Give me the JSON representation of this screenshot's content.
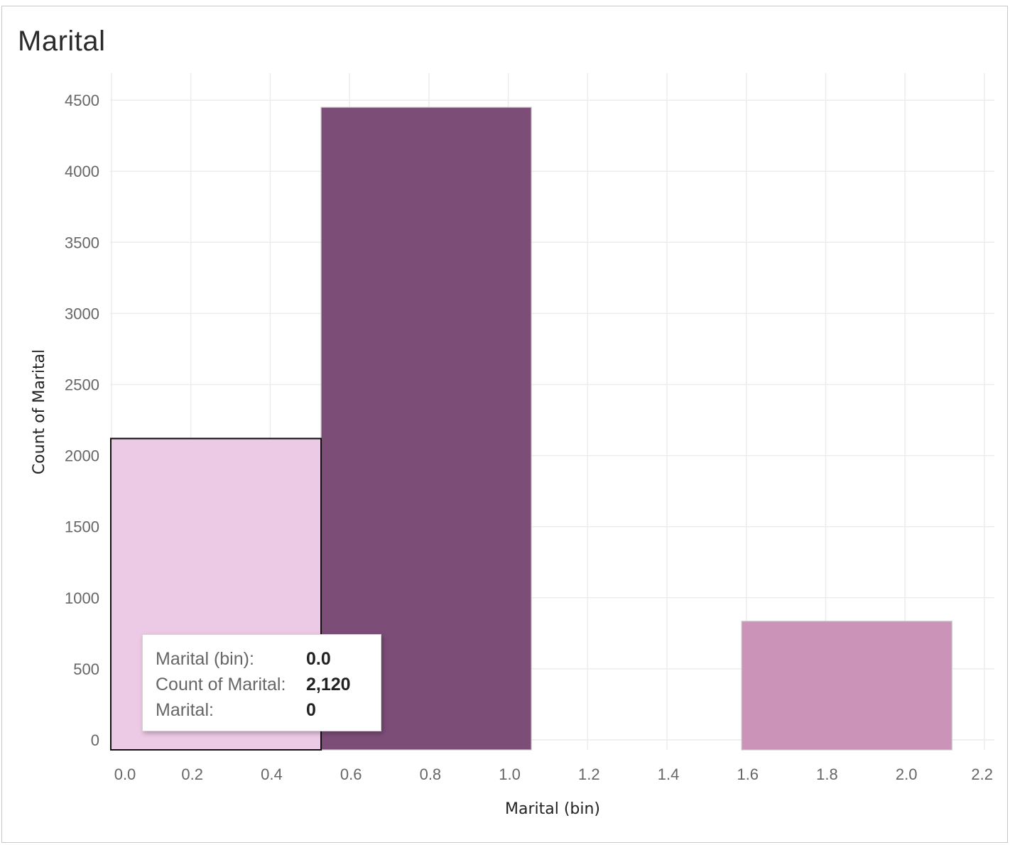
{
  "title": "Marital",
  "tooltip": {
    "rows": [
      {
        "label": "Marital (bin):",
        "value": "0.0"
      },
      {
        "label": "Count of Marital:",
        "value": "2,120"
      },
      {
        "label": "Marital:",
        "value": "0"
      }
    ]
  },
  "colors": {
    "bar_0": "#ecc9e4",
    "bar_1": "#7b4d77",
    "bar_2": "#cb93b8",
    "grid": "#ececec",
    "selected_border": "#111111"
  },
  "chart_data": {
    "type": "bar",
    "title": "Marital",
    "xlabel": "Marital (bin)",
    "ylabel": "Count of Marital",
    "bin_width": 0.53,
    "bars": [
      {
        "bin": 0.0,
        "value": 2120,
        "color": "#ecc9e4",
        "selected": true
      },
      {
        "bin": 0.53,
        "value": 4450,
        "color": "#7b4d77",
        "selected": false
      },
      {
        "bin": 1.59,
        "value": 835,
        "color": "#cb93b8",
        "selected": false
      }
    ],
    "x_ticks": [
      "0.0",
      "0.2",
      "0.4",
      "0.6",
      "0.8",
      "1.0",
      "1.2",
      "1.4",
      "1.6",
      "1.8",
      "2.0",
      "2.2"
    ],
    "x_tick_values": [
      0.0,
      0.2,
      0.4,
      0.6,
      0.8,
      1.0,
      1.2,
      1.4,
      1.6,
      1.8,
      2.0,
      2.2
    ],
    "y_ticks": [
      "0",
      "500",
      "1000",
      "1500",
      "2000",
      "2500",
      "3000",
      "3500",
      "4000",
      "4500"
    ],
    "y_tick_values": [
      0,
      500,
      1000,
      1500,
      2000,
      2500,
      3000,
      3500,
      4000,
      4500
    ],
    "xlim": [
      0.0,
      2.2
    ],
    "ylim": [
      0,
      4500
    ],
    "grid": true
  }
}
